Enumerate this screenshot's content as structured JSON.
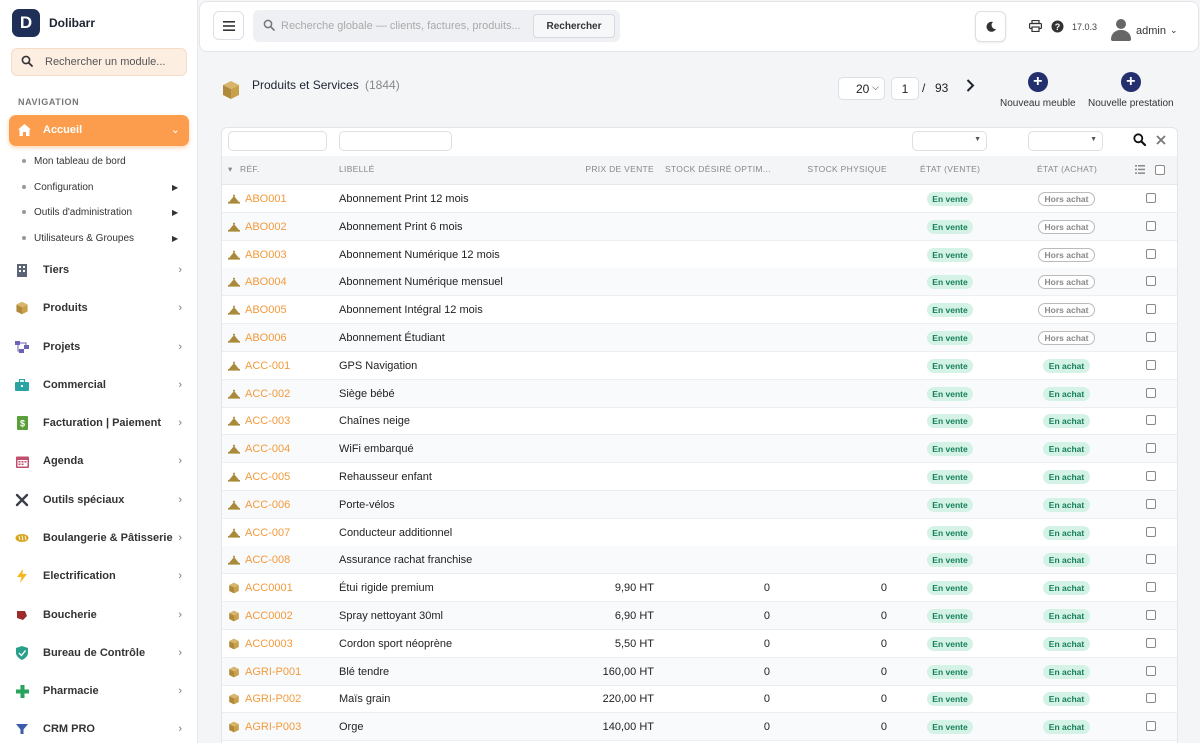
{
  "app": {
    "name": "Dolibarr",
    "logo_letter": "D"
  },
  "sidebar": {
    "module_search_placeholder": "Rechercher un module...",
    "nav_heading": "NAVIGATION",
    "active_item": {
      "label": "Accueil"
    },
    "subitems": [
      {
        "label": "Mon tableau de bord",
        "has_arrow": false
      },
      {
        "label": "Configuration",
        "has_arrow": true
      },
      {
        "label": "Outils d'administration",
        "has_arrow": true
      },
      {
        "label": "Utilisateurs & Groupes",
        "has_arrow": true
      }
    ],
    "items": [
      {
        "label": "Tiers",
        "icon": "building-icon",
        "color": "#5b6474"
      },
      {
        "label": "Produits",
        "icon": "cube-icon",
        "color": "#b48a2c"
      },
      {
        "label": "Projets",
        "icon": "project-icon",
        "color": "#6c63b8"
      },
      {
        "label": "Commercial",
        "icon": "briefcase-icon",
        "color": "#2ba3a3"
      },
      {
        "label": "Facturation | Paiement",
        "icon": "invoice-icon",
        "color": "#5a9f3a"
      },
      {
        "label": "Agenda",
        "icon": "calendar-icon",
        "color": "#c0506e"
      },
      {
        "label": "Outils spéciaux",
        "icon": "tools-icon",
        "color": "#3a3f4a"
      },
      {
        "label": "Boulangerie & Pâtisserie",
        "icon": "bread-icon",
        "color": "#d9a520"
      },
      {
        "label": "Electrification",
        "icon": "bolt-icon",
        "color": "#f2b81d"
      },
      {
        "label": "Boucherie",
        "icon": "meat-icon",
        "color": "#9c2b2b"
      },
      {
        "label": "Bureau de Contrôle",
        "icon": "shield-icon",
        "color": "#2aa08b"
      },
      {
        "label": "Pharmacie",
        "icon": "cross-icon",
        "color": "#27a35b"
      },
      {
        "label": "CRM PRO",
        "icon": "funnel-icon",
        "color": "#3b5ca8"
      }
    ]
  },
  "topbar": {
    "search_placeholder": "Recherche globale — clients, factures, produits...",
    "search_button": "Rechercher",
    "version": "17.0.3",
    "user": "admin"
  },
  "page": {
    "title": "Produits et Services",
    "count": "(1844)",
    "page_size": "20",
    "current_page": "1",
    "page_sep": "/",
    "total_pages": "93",
    "actions": [
      {
        "label": "Nouveau meuble"
      },
      {
        "label": "Nouvelle prestation"
      }
    ]
  },
  "table": {
    "headers": {
      "ref": "RÉF.",
      "libelle": "LIBELLÉ",
      "prix": "PRIX DE VENTE",
      "stock_desire": "STOCK DÉSIRÉ OPTIM...",
      "stock_physique": "STOCK PHYSIQUE",
      "etat_vente": "ÉTAT (VENTE)",
      "etat_achat": "ÉTAT (ACHAT)"
    },
    "rows": [
      {
        "ref": "ABO001",
        "label": "Abonnement Print 12 mois",
        "type": "service",
        "price": "",
        "stock_desired": "",
        "stock_physical": "",
        "sale": "En vente",
        "purchase": "Hors achat"
      },
      {
        "ref": "ABO002",
        "label": "Abonnement Print 6 mois",
        "type": "service",
        "price": "",
        "stock_desired": "",
        "stock_physical": "",
        "sale": "En vente",
        "purchase": "Hors achat"
      },
      {
        "ref": "ABO003",
        "label": "Abonnement Numérique 12 mois",
        "type": "service",
        "price": "",
        "stock_desired": "",
        "stock_physical": "",
        "sale": "En vente",
        "purchase": "Hors achat"
      },
      {
        "ref": "ABO004",
        "label": "Abonnement Numérique mensuel",
        "type": "service",
        "price": "",
        "stock_desired": "",
        "stock_physical": "",
        "sale": "En vente",
        "purchase": "Hors achat"
      },
      {
        "ref": "ABO005",
        "label": "Abonnement Intégral 12 mois",
        "type": "service",
        "price": "",
        "stock_desired": "",
        "stock_physical": "",
        "sale": "En vente",
        "purchase": "Hors achat"
      },
      {
        "ref": "ABO006",
        "label": "Abonnement Étudiant",
        "type": "service",
        "price": "",
        "stock_desired": "",
        "stock_physical": "",
        "sale": "En vente",
        "purchase": "Hors achat"
      },
      {
        "ref": "ACC-001",
        "label": "GPS Navigation",
        "type": "service",
        "price": "",
        "stock_desired": "",
        "stock_physical": "",
        "sale": "En vente",
        "purchase": "En achat"
      },
      {
        "ref": "ACC-002",
        "label": "Siège bébé",
        "type": "service",
        "price": "",
        "stock_desired": "",
        "stock_physical": "",
        "sale": "En vente",
        "purchase": "En achat"
      },
      {
        "ref": "ACC-003",
        "label": "Chaînes neige",
        "type": "service",
        "price": "",
        "stock_desired": "",
        "stock_physical": "",
        "sale": "En vente",
        "purchase": "En achat"
      },
      {
        "ref": "ACC-004",
        "label": "WiFi embarqué",
        "type": "service",
        "price": "",
        "stock_desired": "",
        "stock_physical": "",
        "sale": "En vente",
        "purchase": "En achat"
      },
      {
        "ref": "ACC-005",
        "label": "Rehausseur enfant",
        "type": "service",
        "price": "",
        "stock_desired": "",
        "stock_physical": "",
        "sale": "En vente",
        "purchase": "En achat"
      },
      {
        "ref": "ACC-006",
        "label": "Porte-vélos",
        "type": "service",
        "price": "",
        "stock_desired": "",
        "stock_physical": "",
        "sale": "En vente",
        "purchase": "En achat"
      },
      {
        "ref": "ACC-007",
        "label": "Conducteur additionnel",
        "type": "service",
        "price": "",
        "stock_desired": "",
        "stock_physical": "",
        "sale": "En vente",
        "purchase": "En achat"
      },
      {
        "ref": "ACC-008",
        "label": "Assurance rachat franchise",
        "type": "service",
        "price": "",
        "stock_desired": "",
        "stock_physical": "",
        "sale": "En vente",
        "purchase": "En achat"
      },
      {
        "ref": "ACC0001",
        "label": "Étui rigide premium",
        "type": "product",
        "price": "9,90 HT",
        "stock_desired": "0",
        "stock_physical": "0",
        "sale": "En vente",
        "purchase": "En achat"
      },
      {
        "ref": "ACC0002",
        "label": "Spray nettoyant 30ml",
        "type": "product",
        "price": "6,90 HT",
        "stock_desired": "0",
        "stock_physical": "0",
        "sale": "En vente",
        "purchase": "En achat"
      },
      {
        "ref": "ACC0003",
        "label": "Cordon sport néoprène",
        "type": "product",
        "price": "5,50 HT",
        "stock_desired": "0",
        "stock_physical": "0",
        "sale": "En vente",
        "purchase": "En achat"
      },
      {
        "ref": "AGRI-P001",
        "label": "Blé tendre",
        "type": "product",
        "price": "160,00 HT",
        "stock_desired": "0",
        "stock_physical": "0",
        "sale": "En vente",
        "purchase": "En achat"
      },
      {
        "ref": "AGRI-P002",
        "label": "Maïs grain",
        "type": "product",
        "price": "220,00 HT",
        "stock_desired": "0",
        "stock_physical": "0",
        "sale": "En vente",
        "purchase": "En achat"
      },
      {
        "ref": "AGRI-P003",
        "label": "Orge",
        "type": "product",
        "price": "140,00 HT",
        "stock_desired": "0",
        "stock_physical": "0",
        "sale": "En vente",
        "purchase": "En achat"
      }
    ]
  }
}
